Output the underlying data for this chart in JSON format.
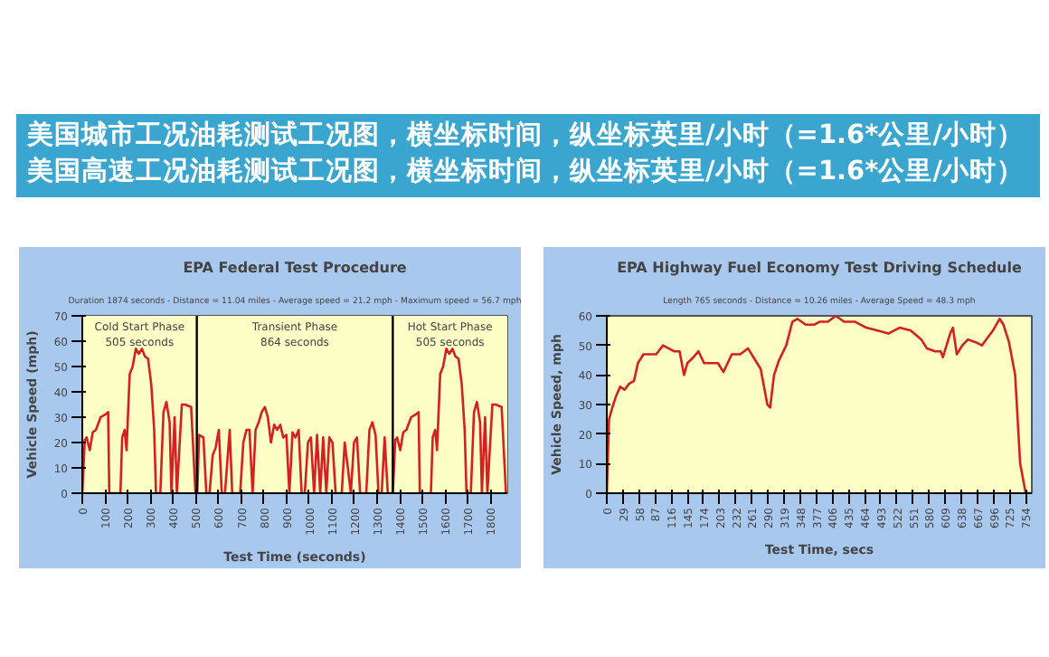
{
  "chart_data": [
    {
      "type": "line",
      "title": "EPA Federal Test Procedure",
      "subtitle": "Duration 1874 seconds - Distance = 11.04 miles - Average speed = 21.2 mph - Maximum speed = 56.7 mph",
      "xlabel": "Test Time (seconds)",
      "ylabel": "Vehicle Speed (mph)",
      "annotations": [
        "美国城市工况油耗测试工况图，横坐标时间，纵坐标英里/小时（=1.6*公里/小时）"
      ],
      "bands": [
        {
          "axis": "x",
          "from": 0,
          "to": 505,
          "label": "Cold Start Phase\n505 seconds",
          "color": "#fdfdc6"
        },
        {
          "axis": "x",
          "from": 505,
          "to": 1369,
          "label": "Transient Phase\n864 seconds",
          "color": "#fdfdc6"
        },
        {
          "axis": "x",
          "from": 1369,
          "to": 1874,
          "label": "Hot Start Phase\n505 seconds",
          "color": "#fdfdc6"
        }
      ],
      "ref_lines": [
        {
          "axis": "x",
          "value": 505,
          "color": "#000000"
        },
        {
          "axis": "x",
          "value": 1369,
          "color": "#000000"
        }
      ],
      "xlim": [
        0,
        1874
      ],
      "ylim": [
        0,
        70
      ],
      "xticks": [
        0,
        100,
        200,
        300,
        400,
        500,
        600,
        700,
        800,
        900,
        1000,
        1100,
        1200,
        1300,
        1400,
        1500,
        1600,
        1700,
        1800
      ],
      "yticks": [
        0,
        10,
        20,
        30,
        40,
        50,
        60,
        70
      ],
      "grid": false,
      "series": [
        {
          "color": "#d42020",
          "x": [
            0,
            11,
            19,
            33,
            46,
            60,
            81,
            100,
            114,
            119,
            168,
            176,
            187,
            195,
            209,
            222,
            236,
            249,
            263,
            276,
            290,
            304,
            317,
            325,
            344,
            358,
            371,
            385,
            393,
            407,
            417,
            439,
            453,
            480,
            499,
            507,
            515,
            534,
            547,
            561,
            575,
            588,
            602,
            615,
            629,
            650,
            661,
            696,
            710,
            724,
            737,
            751,
            764,
            778,
            791,
            805,
            818,
            832,
            846,
            859,
            873,
            886,
            900,
            913,
            927,
            940,
            954,
            967,
            981,
            995,
            1008,
            1022,
            1035,
            1049,
            1062,
            1076,
            1089,
            1103,
            1117,
            1144,
            1157,
            1171,
            1184,
            1198,
            1211,
            1225,
            1252,
            1266,
            1279,
            1293,
            1306,
            1320,
            1333,
            1347,
            1360,
            1369,
            1380,
            1388,
            1402,
            1415,
            1429,
            1450,
            1469,
            1483,
            1488,
            1537,
            1545,
            1556,
            1564,
            1578,
            1591,
            1605,
            1618,
            1632,
            1645,
            1659,
            1673,
            1686,
            1694,
            1713,
            1727,
            1740,
            1754,
            1762,
            1776,
            1786,
            1808,
            1822,
            1849,
            1868,
            1874
          ],
          "values": [
            0,
            21,
            22,
            17,
            24,
            25,
            30,
            31,
            32,
            0,
            0,
            22,
            25,
            17,
            47,
            50,
            57,
            55,
            57,
            54,
            53,
            43,
            25,
            0,
            0,
            32,
            36,
            28,
            0,
            30,
            0,
            35,
            35,
            34,
            0,
            0,
            23,
            22,
            0,
            0,
            15,
            18,
            25,
            0,
            0,
            25,
            0,
            0,
            20,
            25,
            25,
            0,
            25,
            28,
            32,
            34,
            30,
            20,
            27,
            25,
            27,
            22,
            23,
            0,
            24,
            22,
            25,
            0,
            0,
            20,
            22,
            0,
            23,
            0,
            22,
            0,
            22,
            20,
            0,
            0,
            20,
            10,
            0,
            20,
            22,
            0,
            0,
            25,
            28,
            23,
            0,
            0,
            22,
            0,
            0,
            0,
            21,
            22,
            17,
            24,
            25,
            30,
            31,
            32,
            0,
            0,
            22,
            25,
            17,
            47,
            50,
            57,
            55,
            57,
            54,
            53,
            43,
            25,
            0,
            0,
            32,
            36,
            28,
            0,
            30,
            0,
            35,
            35,
            34,
            0,
            0
          ]
        }
      ]
    },
    {
      "type": "line",
      "title": "EPA Highway Fuel Economy Test Driving Schedule",
      "subtitle": "Length 765 seconds - Distance = 10.26 miles - Average Speed = 48.3 mph",
      "xlabel": "Test Time, secs",
      "ylabel": "Vehicle Speed, mph",
      "annotations": [
        "美国高速工况油耗测试工况图，横坐标时间，纵坐标英里/小时（=1.6*公里/小时）"
      ],
      "xlim": [
        0,
        765
      ],
      "ylim": [
        0,
        60
      ],
      "xticks": [
        0,
        29,
        58,
        87,
        116,
        145,
        174,
        203,
        232,
        261,
        290,
        319,
        348,
        377,
        406,
        435,
        464,
        493,
        522,
        551,
        580,
        609,
        638,
        667,
        696,
        725,
        754
      ],
      "yticks": [
        0,
        10,
        20,
        30,
        40,
        50,
        60
      ],
      "grid": false,
      "series": [
        {
          "color": "#d42020",
          "x": [
            0,
            4,
            10,
            17,
            24,
            32,
            40,
            49,
            56,
            66,
            76,
            89,
            101,
            111,
            121,
            131,
            139,
            145,
            156,
            165,
            175,
            185,
            200,
            210,
            225,
            240,
            254,
            264,
            277,
            289,
            294,
            301,
            310,
            323,
            334,
            343,
            358,
            373,
            383,
            398,
            412,
            427,
            447,
            467,
            487,
            507,
            527,
            547,
            566,
            576,
            591,
            601,
            605,
            618,
            623,
            630,
            640,
            650,
            665,
            675,
            695,
            707,
            714,
            724,
            735,
            744,
            754,
            765
          ],
          "values": [
            0,
            25,
            29,
            33,
            36,
            35,
            37,
            38,
            44,
            47,
            47,
            47,
            50,
            49,
            48,
            48,
            40,
            44,
            46,
            48,
            44,
            44,
            44,
            41,
            47,
            47,
            49,
            46,
            42,
            30,
            29,
            40,
            45,
            50,
            58,
            59,
            57,
            57,
            58,
            58,
            60,
            58,
            58,
            56,
            55,
            54,
            56,
            55,
            52,
            49,
            48,
            48,
            46,
            54,
            56,
            47,
            50,
            52,
            51,
            50,
            55,
            59,
            57,
            51,
            40,
            10,
            0,
            0
          ]
        }
      ]
    }
  ]
}
